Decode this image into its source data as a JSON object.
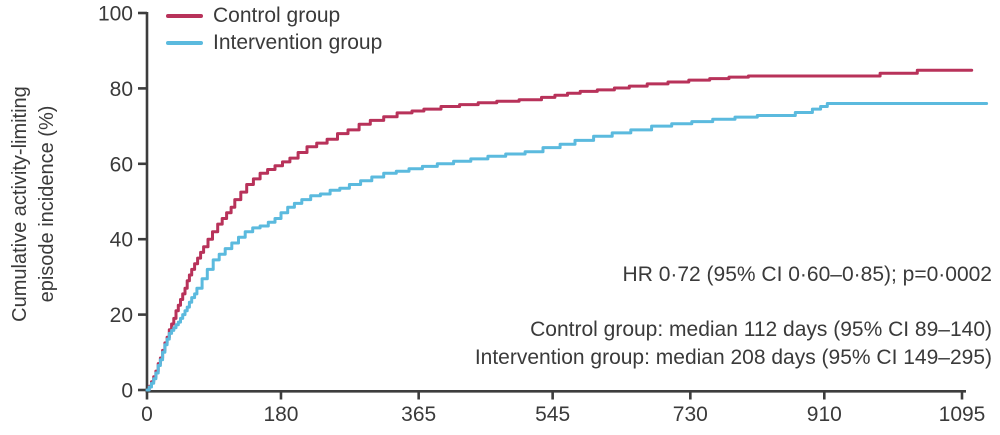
{
  "figure": {
    "ylabel_line1": "Cumulative activity-limiting",
    "ylabel_line2": "episode incidence (%)",
    "legend": [
      {
        "label": "Control group",
        "color": "#b8325a"
      },
      {
        "label": "Intervention group",
        "color": "#5bbade"
      }
    ],
    "annotations": {
      "hr": "HR 0·72 (95% CI 0·60–0·85); p=0·0002",
      "control_median": "Control group: median 112 days (95% CI 89–140)",
      "intervention_median": "Intervention group: median 208 days (95% CI 149–295)"
    },
    "axis_color": "#3d3d3d",
    "text_color": "#3a3a3a"
  },
  "chart_data": {
    "type": "line",
    "subtype": "cumulative-incidence-step-curve",
    "title": "",
    "xlabel": "",
    "ylabel": "Cumulative activity-limiting episode incidence (%)",
    "xlim": [
      0,
      1095
    ],
    "ylim": [
      0,
      100
    ],
    "x_ticks": [
      0,
      180,
      365,
      545,
      730,
      910,
      1095
    ],
    "y_ticks": [
      0,
      20,
      40,
      60,
      80,
      100
    ],
    "grid": false,
    "legend_position": "top-left",
    "stats": {
      "hazard_ratio": "0·72",
      "hr_ci_95": "0·60–0·85",
      "p_value": "0·0002",
      "control_median_days": 112,
      "control_median_ci_95": "89–140",
      "intervention_median_days": 208,
      "intervention_median_ci_95": "149–295"
    },
    "series": [
      {
        "name": "Control group",
        "color": "#b8325a",
        "points": [
          [
            0,
            0
          ],
          [
            3,
            1
          ],
          [
            6,
            2.2
          ],
          [
            9,
            3.5
          ],
          [
            12,
            5
          ],
          [
            15,
            7
          ],
          [
            18,
            8.5
          ],
          [
            21,
            10.5
          ],
          [
            24,
            12.5
          ],
          [
            27,
            14
          ],
          [
            30,
            16
          ],
          [
            33,
            17.5
          ],
          [
            36,
            19
          ],
          [
            39,
            21
          ],
          [
            42,
            22.5
          ],
          [
            45,
            24
          ],
          [
            48,
            25.5
          ],
          [
            51,
            27
          ],
          [
            54,
            29
          ],
          [
            57,
            30.5
          ],
          [
            60,
            32
          ],
          [
            64,
            33.5
          ],
          [
            68,
            35
          ],
          [
            72,
            36.5
          ],
          [
            76,
            38
          ],
          [
            82,
            40
          ],
          [
            88,
            42
          ],
          [
            95,
            44
          ],
          [
            101,
            45.5
          ],
          [
            107,
            47
          ],
          [
            113,
            48.5
          ],
          [
            118,
            50.5
          ],
          [
            126,
            52.5
          ],
          [
            134,
            54.5
          ],
          [
            143,
            56
          ],
          [
            152,
            57.5
          ],
          [
            162,
            58.5
          ],
          [
            172,
            59.5
          ],
          [
            182,
            60.5
          ],
          [
            192,
            61.5
          ],
          [
            203,
            63
          ],
          [
            215,
            64.5
          ],
          [
            228,
            65.5
          ],
          [
            242,
            66.5
          ],
          [
            256,
            68
          ],
          [
            270,
            69
          ],
          [
            285,
            70.5
          ],
          [
            300,
            71.5
          ],
          [
            318,
            72.5
          ],
          [
            336,
            73.5
          ],
          [
            356,
            74
          ],
          [
            372,
            74.5
          ],
          [
            395,
            75.2
          ],
          [
            420,
            75.7
          ],
          [
            445,
            76.2
          ],
          [
            470,
            76.6
          ],
          [
            500,
            77
          ],
          [
            530,
            77.6
          ],
          [
            548,
            78.2
          ],
          [
            565,
            78.7
          ],
          [
            582,
            79.2
          ],
          [
            605,
            79.6
          ],
          [
            628,
            80.1
          ],
          [
            648,
            80.6
          ],
          [
            672,
            81.2
          ],
          [
            700,
            81.7
          ],
          [
            728,
            82.2
          ],
          [
            756,
            82.6
          ],
          [
            782,
            83
          ],
          [
            808,
            83.3
          ],
          [
            900,
            83.3
          ],
          [
            985,
            84
          ],
          [
            1035,
            84.8
          ],
          [
            1108,
            84.8
          ]
        ]
      },
      {
        "name": "Intervention group",
        "color": "#5bbade",
        "points": [
          [
            0,
            0
          ],
          [
            3,
            0.8
          ],
          [
            6,
            1.8
          ],
          [
            9,
            3
          ],
          [
            12,
            4.5
          ],
          [
            15,
            6.5
          ],
          [
            18,
            8
          ],
          [
            21,
            10
          ],
          [
            24,
            12
          ],
          [
            27,
            13.5
          ],
          [
            30,
            15
          ],
          [
            33,
            15.8
          ],
          [
            36,
            16.5
          ],
          [
            39,
            17.3
          ],
          [
            42,
            18
          ],
          [
            45,
            19
          ],
          [
            48,
            20
          ],
          [
            51,
            21
          ],
          [
            54,
            22
          ],
          [
            57,
            23.3
          ],
          [
            60,
            24.5
          ],
          [
            64,
            25.5
          ],
          [
            67,
            27
          ],
          [
            74,
            29.5
          ],
          [
            81,
            32
          ],
          [
            89,
            34.5
          ],
          [
            97,
            36
          ],
          [
            105,
            37.5
          ],
          [
            114,
            39
          ],
          [
            123,
            40.5
          ],
          [
            132,
            42
          ],
          [
            142,
            43
          ],
          [
            152,
            43.5
          ],
          [
            163,
            44.5
          ],
          [
            172,
            45.5
          ],
          [
            180,
            47
          ],
          [
            189,
            48.5
          ],
          [
            198,
            49.5
          ],
          [
            208,
            50.5
          ],
          [
            220,
            51.5
          ],
          [
            233,
            52
          ],
          [
            246,
            53
          ],
          [
            259,
            53.5
          ],
          [
            272,
            54.5
          ],
          [
            287,
            55.5
          ],
          [
            302,
            56.5
          ],
          [
            318,
            57.5
          ],
          [
            335,
            58
          ],
          [
            352,
            58.7
          ],
          [
            370,
            59.3
          ],
          [
            390,
            60
          ],
          [
            412,
            60.7
          ],
          [
            435,
            61.3
          ],
          [
            458,
            62
          ],
          [
            482,
            62.6
          ],
          [
            508,
            63.2
          ],
          [
            532,
            64.3
          ],
          [
            555,
            65.2
          ],
          [
            575,
            66.2
          ],
          [
            600,
            67.3
          ],
          [
            625,
            68.2
          ],
          [
            650,
            69
          ],
          [
            678,
            70
          ],
          [
            705,
            70.6
          ],
          [
            732,
            71.2
          ],
          [
            760,
            71.8
          ],
          [
            790,
            72.4
          ],
          [
            820,
            72.8
          ],
          [
            871,
            73.6
          ],
          [
            894,
            74.5
          ],
          [
            905,
            75.2
          ],
          [
            914,
            76
          ],
          [
            1128,
            76
          ]
        ]
      }
    ]
  }
}
